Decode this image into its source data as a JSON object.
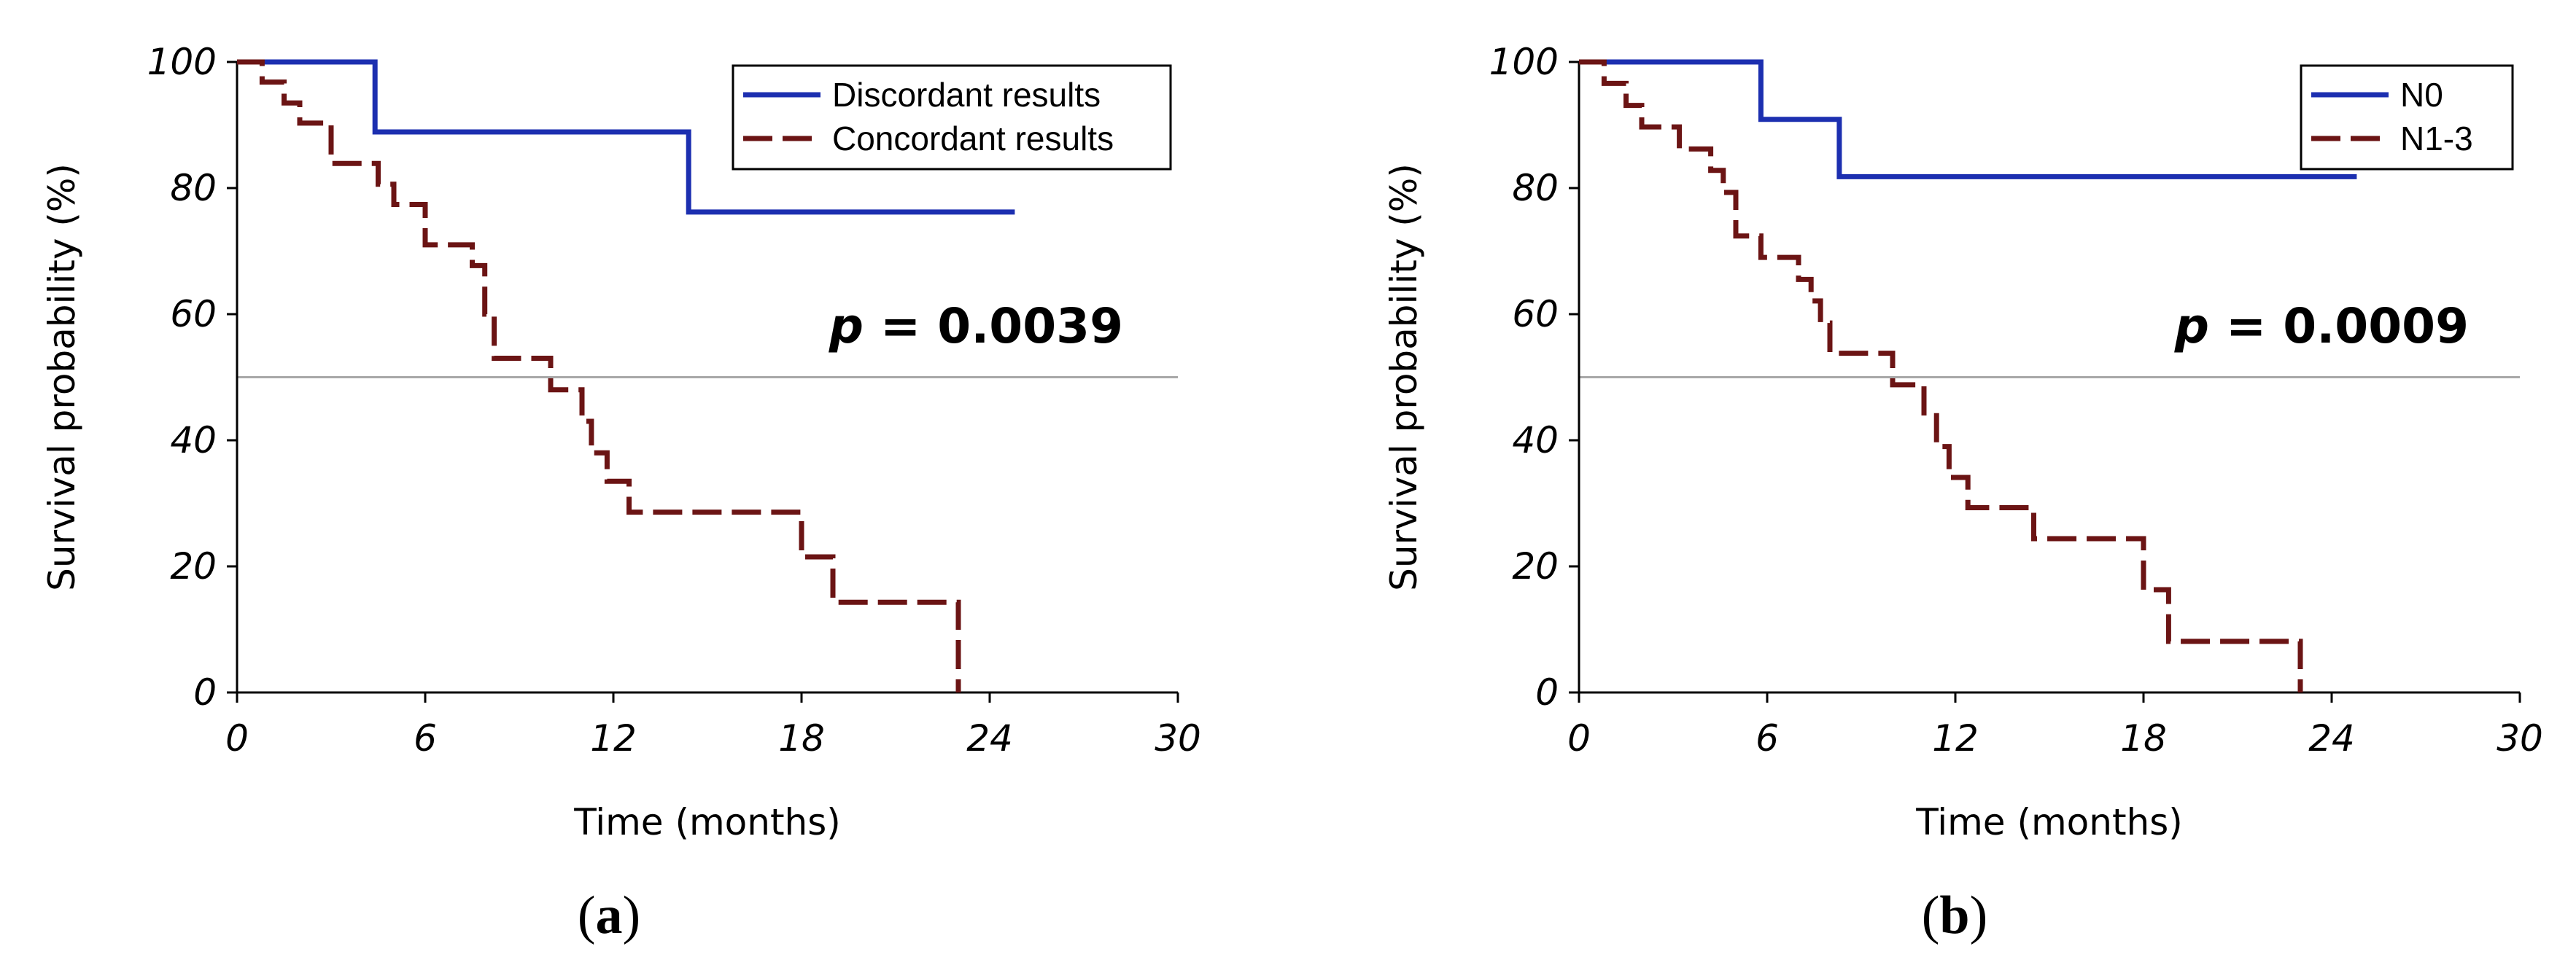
{
  "chart_data": [
    {
      "type": "line",
      "step": true,
      "panel_label": "(a)",
      "panel_letter": "a",
      "xlabel": "Time (months)",
      "ylabel": "Survival probability (%)",
      "xlim": [
        0,
        30
      ],
      "ylim": [
        0,
        100
      ],
      "xticks": [
        "0",
        "6",
        "12",
        "18",
        "24",
        "30"
      ],
      "yticks": [
        "0",
        "20",
        "40",
        "60",
        "80",
        "100"
      ],
      "reference_line_y": 50,
      "p_value": "0.0039",
      "p_label": "p",
      "legend": "top-right",
      "series": [
        {
          "name": "Discordant results",
          "color": "#1c2fb0",
          "style": "solid",
          "x": [
            0,
            4.4,
            14.4,
            24.8
          ],
          "y": [
            100,
            88.9,
            76.2,
            76.2
          ]
        },
        {
          "name": "Concordant results",
          "color": "#6b1414",
          "style": "dashed",
          "x": [
            0,
            0.8,
            1.5,
            2.0,
            3.0,
            4.5,
            5.0,
            6.0,
            7.5,
            7.9,
            8.2,
            10.0,
            11.0,
            11.3,
            11.8,
            12.5,
            18.0,
            19.0,
            23.0,
            23.0
          ],
          "y": [
            100,
            96.8,
            93.5,
            90.3,
            83.9,
            80.6,
            77.4,
            71.0,
            67.7,
            60.0,
            53.0,
            48.0,
            43.0,
            38.0,
            33.5,
            28.6,
            21.5,
            14.3,
            14.3,
            0
          ]
        }
      ]
    },
    {
      "type": "line",
      "step": true,
      "panel_label": "(b)",
      "panel_letter": "b",
      "xlabel": "Time (months)",
      "ylabel": "Survival probability (%)",
      "xlim": [
        0,
        30
      ],
      "ylim": [
        0,
        100
      ],
      "xticks": [
        "0",
        "6",
        "12",
        "18",
        "24",
        "30"
      ],
      "yticks": [
        "0",
        "20",
        "40",
        "60",
        "80",
        "100"
      ],
      "reference_line_y": 50,
      "p_value": "0.0009",
      "p_label": "p",
      "legend": "top-right",
      "series": [
        {
          "name": "N0",
          "color": "#1c2fb0",
          "style": "solid",
          "x": [
            0,
            5.8,
            8.3,
            24.8
          ],
          "y": [
            100,
            90.9,
            81.8,
            81.8
          ]
        },
        {
          "name": "N1-3",
          "color": "#6b1414",
          "style": "dashed",
          "x": [
            0,
            0.8,
            1.5,
            2.0,
            3.2,
            4.2,
            4.6,
            5.0,
            5.8,
            7.0,
            7.4,
            7.7,
            8.0,
            10.0,
            11.0,
            11.4,
            11.8,
            12.4,
            14.5,
            18.0,
            18.8,
            23.0,
            23.0
          ],
          "y": [
            100,
            96.6,
            93.1,
            89.7,
            86.2,
            82.8,
            79.3,
            72.4,
            69.0,
            65.5,
            62.1,
            58.6,
            53.8,
            48.8,
            43.9,
            39.0,
            34.1,
            29.3,
            24.4,
            16.3,
            8.1,
            8.1,
            0
          ]
        }
      ]
    }
  ]
}
